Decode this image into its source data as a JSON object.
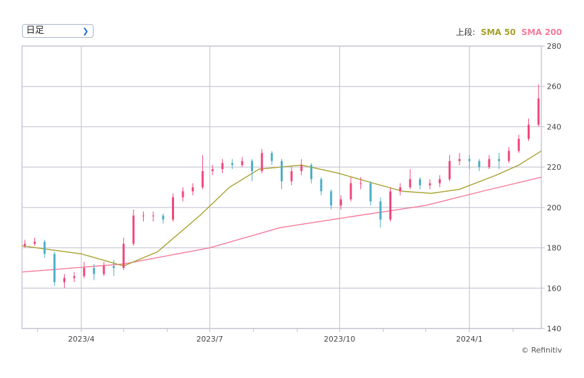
{
  "controls": {
    "period_select": "日足",
    "period_icon": "chevron-down-icon"
  },
  "legend": {
    "prefix": "上段:",
    "sma50": "SMA 50",
    "sma200": "SMA 200"
  },
  "credit": "© Refinitiv",
  "colors": {
    "up": "#f0457a",
    "down": "#4aaec8",
    "sma50": "#a6a02a",
    "sma200": "#f57a9a",
    "grid": "#c8c8d6"
  },
  "chart_data": {
    "type": "ohlc",
    "xdomain": [
      "2023-02-18",
      "2024-02-21"
    ],
    "ylim": [
      140,
      280
    ],
    "yticks": [
      140,
      160,
      180,
      200,
      220,
      240,
      260,
      280
    ],
    "xticks": [
      {
        "date": "2023-04-01",
        "label": "2023/4"
      },
      {
        "date": "2023-07-01",
        "label": "2023/7"
      },
      {
        "date": "2023-10-01",
        "label": "2023/10"
      },
      {
        "date": "2024-01-01",
        "label": "2024/1"
      }
    ],
    "grid": true,
    "bars": [
      [
        "2023-02-20",
        181,
        184,
        180,
        182
      ],
      [
        "2023-02-27",
        182,
        185,
        181,
        183
      ],
      [
        "2023-03-06",
        183,
        184,
        175,
        177
      ],
      [
        "2023-03-13",
        177,
        178,
        161,
        163
      ],
      [
        "2023-03-20",
        163,
        167,
        160,
        165
      ],
      [
        "2023-03-27",
        165,
        168,
        163,
        166
      ],
      [
        "2023-04-03",
        166,
        173,
        165,
        170
      ],
      [
        "2023-04-10",
        170,
        172,
        164,
        167
      ],
      [
        "2023-04-17",
        167,
        173,
        166,
        171
      ],
      [
        "2023-04-24",
        171,
        174,
        166,
        170
      ],
      [
        "2023-05-01",
        170,
        185,
        169,
        182
      ],
      [
        "2023-05-08",
        182,
        199,
        181,
        196
      ],
      [
        "2023-05-15",
        196,
        198,
        193,
        196
      ],
      [
        "2023-05-22",
        196,
        198,
        193,
        196
      ],
      [
        "2023-05-29",
        196,
        197,
        192,
        194
      ],
      [
        "2023-06-05",
        194,
        207,
        193,
        205
      ],
      [
        "2023-06-12",
        205,
        210,
        203,
        208
      ],
      [
        "2023-06-19",
        208,
        212,
        206,
        210
      ],
      [
        "2023-06-26",
        210,
        226,
        209,
        218
      ],
      [
        "2023-07-03",
        218,
        221,
        216,
        219
      ],
      [
        "2023-07-10",
        219,
        224,
        217,
        222
      ],
      [
        "2023-07-17",
        222,
        224,
        219,
        221
      ],
      [
        "2023-07-24",
        221,
        225,
        220,
        223
      ],
      [
        "2023-07-31",
        223,
        224,
        213,
        218
      ],
      [
        "2023-08-07",
        218,
        229,
        217,
        227
      ],
      [
        "2023-08-14",
        227,
        228,
        221,
        223
      ],
      [
        "2023-08-21",
        223,
        224,
        209,
        213
      ],
      [
        "2023-08-28",
        213,
        220,
        211,
        218
      ],
      [
        "2023-09-04",
        218,
        224,
        216,
        221
      ],
      [
        "2023-09-11",
        221,
        222,
        212,
        214
      ],
      [
        "2023-09-18",
        214,
        215,
        206,
        208
      ],
      [
        "2023-09-25",
        208,
        209,
        199,
        201
      ],
      [
        "2023-10-02",
        201,
        206,
        199,
        204
      ],
      [
        "2023-10-09",
        204,
        215,
        203,
        212
      ],
      [
        "2023-10-16",
        212,
        215,
        209,
        212
      ],
      [
        "2023-10-23",
        212,
        213,
        201,
        203
      ],
      [
        "2023-10-30",
        203,
        205,
        190,
        194
      ],
      [
        "2023-11-06",
        194,
        210,
        193,
        208
      ],
      [
        "2023-11-13",
        208,
        212,
        206,
        210
      ],
      [
        "2023-11-20",
        210,
        219,
        209,
        214
      ],
      [
        "2023-11-27",
        214,
        215,
        209,
        211
      ],
      [
        "2023-12-04",
        211,
        214,
        209,
        212
      ],
      [
        "2023-12-11",
        212,
        216,
        210,
        214
      ],
      [
        "2023-12-18",
        214,
        226,
        213,
        223
      ],
      [
        "2023-12-25",
        223,
        227,
        221,
        224
      ],
      [
        "2024-01-01",
        224,
        226,
        219,
        223
      ],
      [
        "2024-01-08",
        223,
        224,
        218,
        220
      ],
      [
        "2024-01-15",
        220,
        226,
        219,
        224
      ],
      [
        "2024-01-22",
        224,
        227,
        219,
        223
      ],
      [
        "2024-01-29",
        223,
        230,
        222,
        228
      ],
      [
        "2024-02-05",
        228,
        236,
        227,
        234
      ],
      [
        "2024-02-12",
        234,
        244,
        233,
        241
      ],
      [
        "2024-02-19",
        241,
        261,
        240,
        254
      ]
    ],
    "sma50": [
      [
        "2023-02-18",
        181
      ],
      [
        "2023-04-01",
        177
      ],
      [
        "2023-05-01",
        171
      ],
      [
        "2023-05-25",
        178
      ],
      [
        "2023-06-24",
        196
      ],
      [
        "2023-07-15",
        210
      ],
      [
        "2023-08-05",
        219
      ],
      [
        "2023-09-04",
        221
      ],
      [
        "2023-09-30",
        217
      ],
      [
        "2023-10-25",
        212
      ],
      [
        "2023-11-15",
        208
      ],
      [
        "2023-12-05",
        207
      ],
      [
        "2023-12-25",
        209
      ],
      [
        "2024-01-20",
        216
      ],
      [
        "2024-02-05",
        221
      ],
      [
        "2024-02-21",
        228
      ]
    ],
    "sma200": [
      [
        "2023-02-18",
        168
      ],
      [
        "2023-05-01",
        172
      ],
      [
        "2023-07-01",
        180
      ],
      [
        "2023-08-20",
        190
      ],
      [
        "2023-10-05",
        195
      ],
      [
        "2023-12-01",
        201
      ],
      [
        "2024-01-10",
        208
      ],
      [
        "2024-02-21",
        215
      ]
    ]
  }
}
